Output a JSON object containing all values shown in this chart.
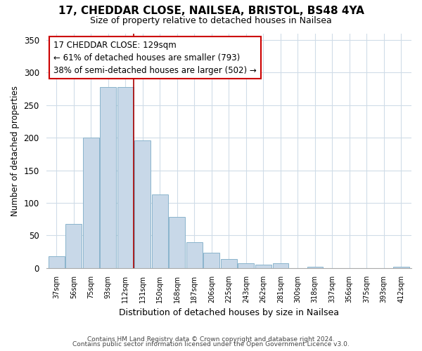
{
  "title": "17, CHEDDAR CLOSE, NAILSEA, BRISTOL, BS48 4YA",
  "subtitle": "Size of property relative to detached houses in Nailsea",
  "xlabel": "Distribution of detached houses by size in Nailsea",
  "ylabel": "Number of detached properties",
  "categories": [
    "37sqm",
    "56sqm",
    "75sqm",
    "93sqm",
    "112sqm",
    "131sqm",
    "150sqm",
    "168sqm",
    "187sqm",
    "206sqm",
    "225sqm",
    "243sqm",
    "262sqm",
    "281sqm",
    "300sqm",
    "318sqm",
    "337sqm",
    "356sqm",
    "375sqm",
    "393sqm",
    "412sqm"
  ],
  "values": [
    18,
    68,
    200,
    278,
    278,
    196,
    113,
    79,
    40,
    24,
    14,
    8,
    5,
    8,
    0,
    2,
    0,
    0,
    0,
    0,
    2
  ],
  "bar_color": "#c8d8e8",
  "bar_edgecolor": "#8ab4cc",
  "highlight_line_color": "#aa0000",
  "annotation_line1": "17 CHEDDAR CLOSE: 129sqm",
  "annotation_line2": "← 61% of detached houses are smaller (793)",
  "annotation_line3": "38% of semi-detached houses are larger (502) →",
  "annotation_box_edgecolor": "#cc0000",
  "annotation_box_facecolor": "#ffffff",
  "ylim": [
    0,
    360
  ],
  "yticks": [
    0,
    50,
    100,
    150,
    200,
    250,
    300,
    350
  ],
  "footer_line1": "Contains HM Land Registry data © Crown copyright and database right 2024.",
  "footer_line2": "Contains public sector information licensed under the Open Government Licence v3.0.",
  "background_color": "#ffffff",
  "grid_color": "#d0dce8"
}
